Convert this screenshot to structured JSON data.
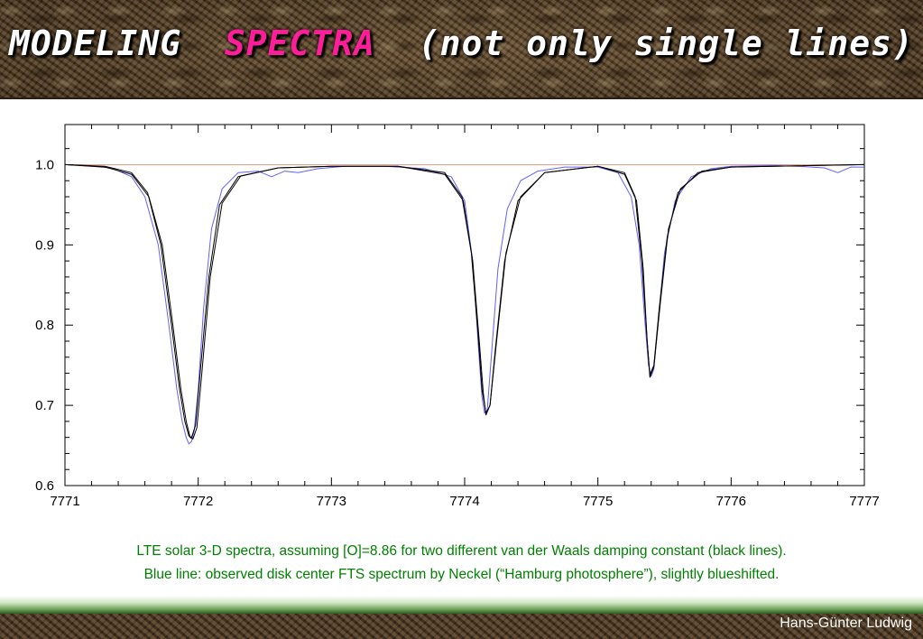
{
  "slide": {
    "title_part1": "MODELING  ",
    "title_part2": "SPECTRA",
    "title_part3": "  (not only single lines)",
    "caption_line1": "LTE solar 3-D spectra, assuming [O]=8.86 for two different van der Waals damping constant (black lines).",
    "caption_line2": "Blue line: observed disk center FTS spectrum by Neckel (“Hamburg photosphere”), slightly blueshifted.",
    "author": "Hans-Günter Ludwig",
    "colors": {
      "title_accent": "#ff1e9a",
      "caption": "#008000"
    }
  },
  "chart_data": {
    "type": "line",
    "title": "",
    "xlabel": "",
    "ylabel": "",
    "xlim": [
      7771,
      7777
    ],
    "ylim": [
      0.6,
      1.05
    ],
    "x_ticks": [
      7771,
      7772,
      7773,
      7774,
      7775,
      7776,
      7777
    ],
    "x_tick_labels": [
      "7771",
      "7772",
      "7773",
      "7774",
      "7775",
      "7776",
      "7777"
    ],
    "y_ticks": [
      0.6,
      0.7,
      0.8,
      0.9,
      1.0
    ],
    "y_tick_labels": [
      "0.6",
      "0.7",
      "0.8",
      "0.9",
      "1.0"
    ],
    "grid": false,
    "reference_line": {
      "y": 1.0,
      "color": "#e8a080"
    },
    "lines": [
      {
        "center": 7771.94,
        "depths": [
          0.34,
          0.35
        ],
        "observed_depth": 0.352
      },
      {
        "center": 7774.16,
        "depths": [
          0.31,
          0.312
        ],
        "observed_depth": 0.313
      },
      {
        "center": 7775.39,
        "depths": [
          0.262,
          0.265
        ],
        "observed_depth": 0.266
      }
    ],
    "series": [
      {
        "color": "#6060ff",
        "x": [
          7771,
          7771.2,
          7771.35,
          7771.5,
          7771.6,
          7771.7,
          7771.78,
          7771.84,
          7771.88,
          7771.91,
          7771.93,
          7771.95,
          7771.97,
          7772.0,
          7772.04,
          7772.1,
          7772.18,
          7772.3,
          7772.45,
          7772.55,
          7772.65,
          7772.75,
          7772.9,
          7773.1,
          7773.4,
          7773.7,
          7773.9,
          7774.0,
          7774.06,
          7774.1,
          7774.13,
          7774.15,
          7774.17,
          7774.2,
          7774.25,
          7774.32,
          7774.42,
          7774.55,
          7774.75,
          7775.0,
          7775.15,
          7775.25,
          7775.31,
          7775.35,
          7775.38,
          7775.4,
          7775.42,
          7775.45,
          7775.5,
          7775.58,
          7775.7,
          7775.85,
          7776.0,
          7776.3,
          7776.5,
          7776.7,
          7776.8,
          7776.9,
          7777
        ],
        "y": [
          1.0,
          0.998,
          0.996,
          0.985,
          0.96,
          0.9,
          0.8,
          0.72,
          0.68,
          0.66,
          0.652,
          0.655,
          0.668,
          0.72,
          0.82,
          0.92,
          0.97,
          0.99,
          0.992,
          0.985,
          0.992,
          0.99,
          0.995,
          0.998,
          0.998,
          0.995,
          0.985,
          0.955,
          0.88,
          0.78,
          0.71,
          0.69,
          0.695,
          0.76,
          0.87,
          0.945,
          0.98,
          0.992,
          0.997,
          0.997,
          0.99,
          0.96,
          0.9,
          0.81,
          0.75,
          0.736,
          0.745,
          0.8,
          0.89,
          0.955,
          0.985,
          0.995,
          0.998,
          0.999,
          0.998,
          0.996,
          0.99,
          0.997,
          0.997
        ]
      },
      {
        "color": "#000000",
        "x": [
          7771,
          7771.3,
          7771.5,
          7771.62,
          7771.72,
          7771.8,
          7771.86,
          7771.9,
          7771.93,
          7771.95,
          7771.98,
          7772.02,
          7772.08,
          7772.16,
          7772.3,
          7772.6,
          7773.0,
          7773.5,
          7773.85,
          7773.98,
          7774.05,
          7774.1,
          7774.13,
          7774.16,
          7774.19,
          7774.23,
          7774.3,
          7774.4,
          7774.6,
          7775.0,
          7775.2,
          7775.28,
          7775.33,
          7775.37,
          7775.39,
          7775.42,
          7775.46,
          7775.52,
          7775.6,
          7775.75,
          7776.0,
          7777
        ],
        "y": [
          1.0,
          0.998,
          0.99,
          0.965,
          0.9,
          0.8,
          0.72,
          0.68,
          0.662,
          0.66,
          0.675,
          0.75,
          0.86,
          0.95,
          0.985,
          0.996,
          0.998,
          0.998,
          0.99,
          0.96,
          0.89,
          0.79,
          0.72,
          0.69,
          0.7,
          0.77,
          0.88,
          0.955,
          0.99,
          0.998,
          0.99,
          0.96,
          0.88,
          0.78,
          0.738,
          0.75,
          0.82,
          0.91,
          0.965,
          0.99,
          0.997,
          1.0
        ]
      },
      {
        "color": "#000000",
        "x": [
          7771,
          7771.3,
          7771.5,
          7771.63,
          7771.73,
          7771.81,
          7771.87,
          7771.91,
          7771.94,
          7771.96,
          7771.99,
          7772.03,
          7772.09,
          7772.18,
          7772.32,
          7772.6,
          7773.0,
          7773.5,
          7773.85,
          7773.99,
          7774.06,
          7774.11,
          7774.14,
          7774.16,
          7774.19,
          7774.24,
          7774.31,
          7774.42,
          7774.6,
          7775.0,
          7775.2,
          7775.29,
          7775.34,
          7775.37,
          7775.39,
          7775.42,
          7775.47,
          7775.53,
          7775.62,
          7775.78,
          7776.0,
          7777
        ],
        "y": [
          1.0,
          0.997,
          0.988,
          0.96,
          0.9,
          0.8,
          0.72,
          0.68,
          0.66,
          0.658,
          0.672,
          0.745,
          0.86,
          0.952,
          0.986,
          0.996,
          0.998,
          0.998,
          0.988,
          0.955,
          0.88,
          0.78,
          0.715,
          0.688,
          0.7,
          0.78,
          0.89,
          0.96,
          0.99,
          0.998,
          0.988,
          0.955,
          0.87,
          0.78,
          0.735,
          0.748,
          0.83,
          0.92,
          0.97,
          0.992,
          0.997,
          1.0
        ]
      }
    ]
  }
}
